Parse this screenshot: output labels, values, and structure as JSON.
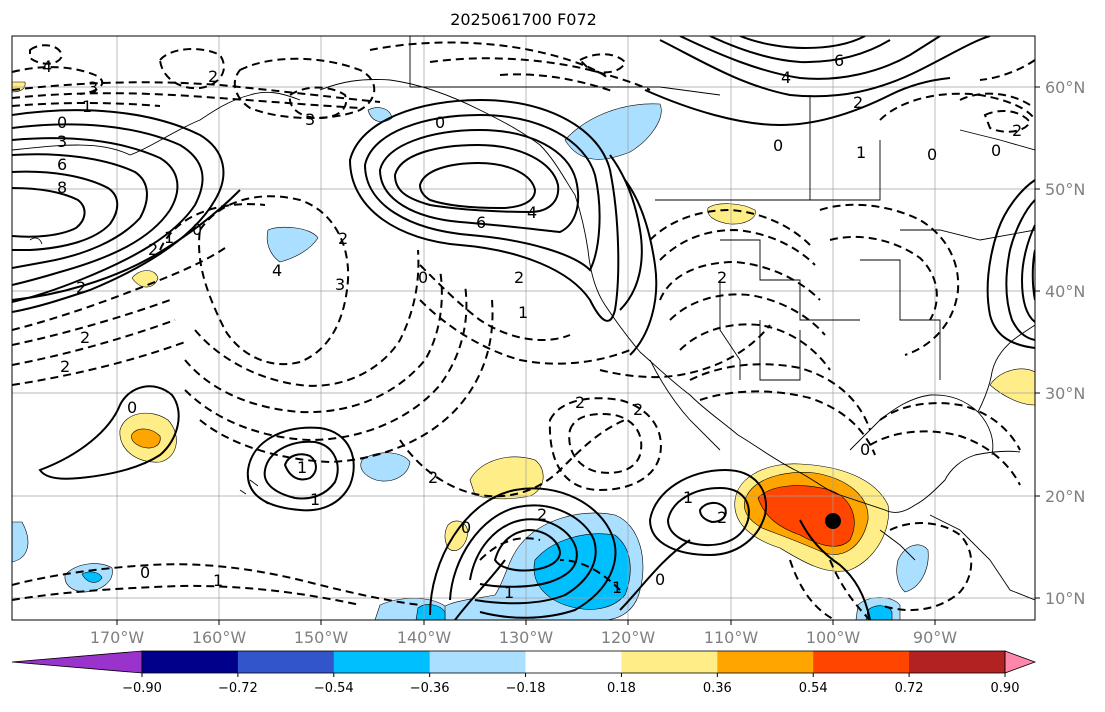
{
  "title": "2025061700 F072",
  "lat_labels": [
    "60°N",
    "50°N",
    "40°N",
    "30°N",
    "20°N",
    "10°N"
  ],
  "lon_labels": [
    "170°W",
    "160°W",
    "150°W",
    "140°W",
    "130°W",
    "120°W",
    "110°W",
    "100°W",
    "90°W"
  ],
  "colorbar": {
    "tick_labels": [
      "−0.90",
      "−0.72",
      "−0.54",
      "−0.36",
      "−0.18",
      "0.18",
      "0.36",
      "0.54",
      "0.72",
      "0.90"
    ],
    "colors": [
      "#9933cc",
      "#00008b",
      "#3355cc",
      "#00bfff",
      "#aadfff",
      "#ffffff",
      "#ffee88",
      "#ffa500",
      "#ff4500",
      "#b22222",
      "#ff88aa"
    ]
  },
  "contour_labels": [
    "4",
    "3",
    "1",
    "0",
    "3",
    "6",
    "8",
    "2",
    "2",
    "0",
    "3",
    "6",
    "4",
    "2",
    "1",
    "2",
    "1",
    "0",
    "2",
    "3",
    "4",
    "0",
    "2",
    "0",
    "2",
    "1",
    "1",
    "2",
    "2",
    "2",
    "0",
    "1",
    "2",
    "1",
    "4",
    "6",
    "2",
    "0",
    "1",
    "0",
    "2",
    "0",
    "2",
    "0",
    "0",
    "1",
    "2",
    "1",
    "0"
  ]
}
